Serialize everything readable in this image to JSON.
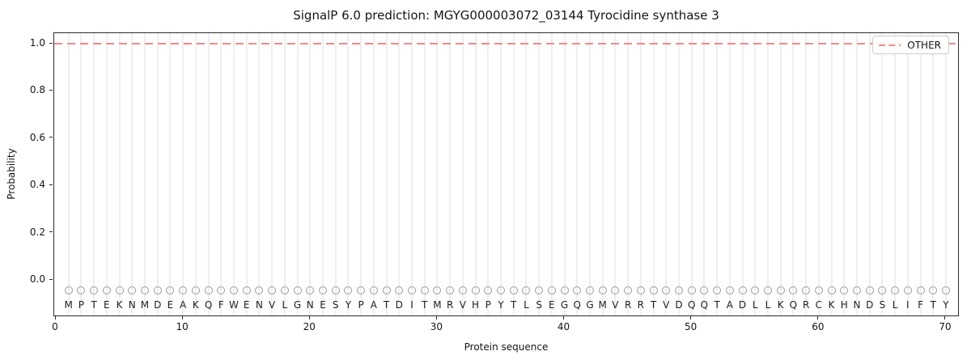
{
  "colors": {
    "other_line": "#ee8a8a",
    "grid": "#efefef",
    "marker_outline": "#9a9a9a",
    "letter_text": "#1f1f1f",
    "spine": "#2b2b2b"
  },
  "chart_data": {
    "type": "line",
    "title": "SignalP 6.0 prediction: MGYG000003072_03144 Tyrocidine synthase 3",
    "xlabel": "Protein sequence",
    "ylabel": "Probability",
    "xlim": [
      -0.15,
      71.1
    ],
    "ylim": [
      -0.157,
      1.045
    ],
    "x_ticks": [
      0,
      10,
      20,
      30,
      40,
      50,
      60,
      70
    ],
    "y_ticks": [
      0.0,
      0.2,
      0.4,
      0.6,
      0.8,
      1.0
    ],
    "grid": "vertical gridline at every residue position",
    "legend_position": "upper right",
    "series": [
      {
        "name": "OTHER",
        "color": "#ee8a8a",
        "linestyle": "dashed",
        "x": [
          1,
          2,
          3,
          4,
          5,
          6,
          7,
          8,
          9,
          10,
          11,
          12,
          13,
          14,
          15,
          16,
          17,
          18,
          19,
          20,
          21,
          22,
          23,
          24,
          25,
          26,
          27,
          28,
          29,
          30,
          31,
          32,
          33,
          34,
          35,
          36,
          37,
          38,
          39,
          40,
          41,
          42,
          43,
          44,
          45,
          46,
          47,
          48,
          49,
          50,
          51,
          52,
          53,
          54,
          55,
          56,
          57,
          58,
          59,
          60,
          61,
          62,
          63,
          64,
          65,
          66,
          67,
          68,
          69,
          70
        ],
        "y": [
          1.0,
          1.0,
          1.0,
          1.0,
          1.0,
          1.0,
          1.0,
          1.0,
          1.0,
          1.0,
          1.0,
          1.0,
          1.0,
          1.0,
          1.0,
          1.0,
          1.0,
          1.0,
          1.0,
          1.0,
          1.0,
          1.0,
          1.0,
          1.0,
          1.0,
          1.0,
          1.0,
          1.0,
          1.0,
          1.0,
          1.0,
          1.0,
          1.0,
          1.0,
          1.0,
          1.0,
          1.0,
          1.0,
          1.0,
          1.0,
          1.0,
          1.0,
          1.0,
          1.0,
          1.0,
          1.0,
          1.0,
          1.0,
          1.0,
          1.0,
          1.0,
          1.0,
          1.0,
          1.0,
          1.0,
          1.0,
          1.0,
          1.0,
          1.0,
          1.0,
          1.0,
          1.0,
          1.0,
          1.0,
          1.0,
          1.0,
          1.0,
          1.0,
          1.0,
          1.0
        ]
      }
    ],
    "residue_row": {
      "marker": "o",
      "marker_y": -0.045,
      "letter_y": -0.105,
      "sequence": "MPTEKNMDEAKQFWENVLGNESYPATDITMRVHPYTLSEGQGMVRRTVDQQTADLLKQRCKHNDSLIFTY"
    }
  }
}
